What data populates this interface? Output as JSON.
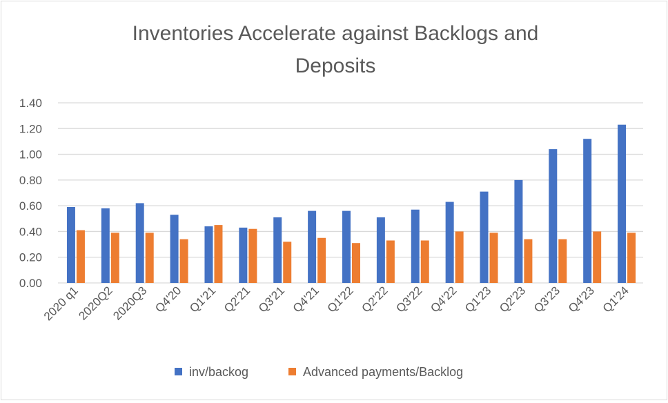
{
  "chart_data": {
    "type": "bar",
    "title": "Inventories Accelerate against Backlogs and Deposits",
    "title_lines": [
      "Inventories Accelerate against Backlogs and",
      "Deposits"
    ],
    "categories": [
      "2020 q1",
      "2020Q2",
      "2020Q3",
      "Q4'20",
      "Q1'21",
      "Q2'21",
      "Q3'21",
      "Q4'21",
      "Q1'22",
      "Q2'22",
      "Q3'22",
      "Q4'22",
      "Q1'23",
      "Q2'23",
      "Q3'23",
      "Q4'23",
      "Q1'24"
    ],
    "series": [
      {
        "name": "inv/backog",
        "color": "#4472c4",
        "values": [
          0.59,
          0.58,
          0.62,
          0.53,
          0.44,
          0.43,
          0.51,
          0.56,
          0.56,
          0.51,
          0.57,
          0.63,
          0.71,
          0.8,
          1.04,
          1.12,
          1.23
        ]
      },
      {
        "name": "Advanced payments/Backlog",
        "color": "#ed7d31",
        "values": [
          0.41,
          0.39,
          0.39,
          0.34,
          0.45,
          0.42,
          0.32,
          0.35,
          0.31,
          0.33,
          0.33,
          0.4,
          0.39,
          0.34,
          0.34,
          0.4,
          0.39
        ]
      }
    ],
    "yticks": [
      "0.00",
      "0.20",
      "0.40",
      "0.60",
      "0.80",
      "1.00",
      "1.20",
      "1.40"
    ],
    "ylim": [
      0,
      1.4
    ],
    "xlabel": "",
    "ylabel": "",
    "grid": "horizontal",
    "legend": "bottom"
  }
}
